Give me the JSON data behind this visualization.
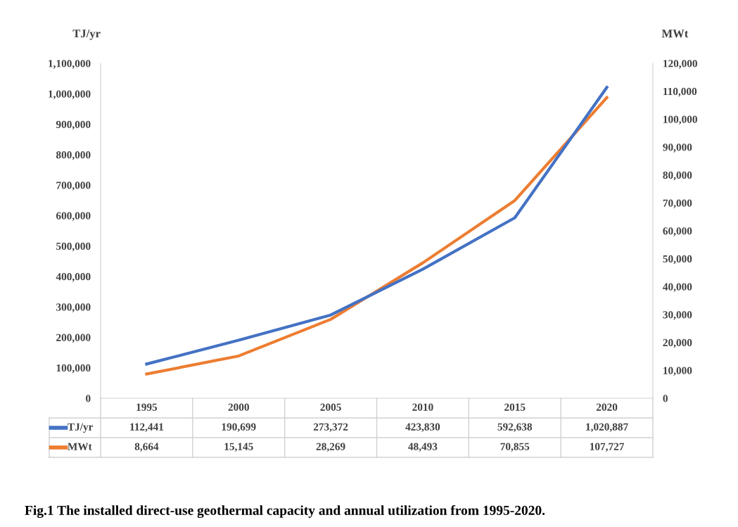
{
  "chart_data": {
    "type": "line",
    "categories": [
      "1995",
      "2000",
      "2005",
      "2010",
      "2015",
      "2020"
    ],
    "series": [
      {
        "name": "TJ/yr",
        "color": "#4472c4",
        "values": [
          112441,
          190699,
          273372,
          423830,
          592638,
          1020887
        ],
        "value_labels": [
          "112,441",
          "190,699",
          "273,372",
          "423,830",
          "592,638",
          "1,020,887"
        ]
      },
      {
        "name": "MWt",
        "color": "#ed7d31",
        "axis": "y2",
        "values": [
          8664,
          15145,
          28269,
          48493,
          70855,
          107727
        ],
        "value_labels": [
          "8,664",
          "15,145",
          "28,269",
          "48,493",
          "70,855",
          "107,727"
        ]
      }
    ],
    "ylabel": "TJ/yr",
    "y2label": "MWt",
    "ylim": [
      0,
      1100000
    ],
    "yticks": [
      0,
      {
        "value": 100000,
        "label": "100,000"
      },
      {
        "value": 200000,
        "label": "200,000"
      },
      {
        "value": 300000,
        "label": "300,000"
      },
      {
        "value": 400000,
        "label": "400,000"
      },
      {
        "value": 500000,
        "label": "500,000"
      },
      {
        "value": 600000,
        "label": "600,000"
      },
      {
        "value": 700000,
        "label": "700,000"
      },
      {
        "value": 800000,
        "label": "800,000"
      },
      {
        "value": 900000,
        "label": "900,000"
      },
      {
        "value": 1000000,
        "label": "1,000,000"
      },
      {
        "value": 1100000,
        "label": "1,100,000"
      }
    ],
    "y2lim": [
      0,
      120000
    ],
    "y2ticks": [
      0,
      {
        "value": 10000,
        "label": "10,000"
      },
      {
        "value": 20000,
        "label": "20,000"
      },
      {
        "value": 30000,
        "label": "30,000"
      },
      {
        "value": 40000,
        "label": "40,000"
      },
      {
        "value": 50000,
        "label": "50,000"
      },
      {
        "value": 60000,
        "label": "60,000"
      },
      {
        "value": 70000,
        "label": "70,000"
      },
      {
        "value": 80000,
        "label": "80,000"
      },
      {
        "value": 90000,
        "label": "90,000"
      },
      {
        "value": 100000,
        "label": "100,000"
      },
      {
        "value": 110000,
        "label": "110,000"
      },
      {
        "value": 120000,
        "label": "120,000"
      }
    ],
    "legend": "bottom",
    "grid": false,
    "marker": "none",
    "line_style": "solid",
    "annotations": [
      "Fig.1 The installed direct-use geothermal capacity and annual utilization from 1995-2020."
    ]
  }
}
